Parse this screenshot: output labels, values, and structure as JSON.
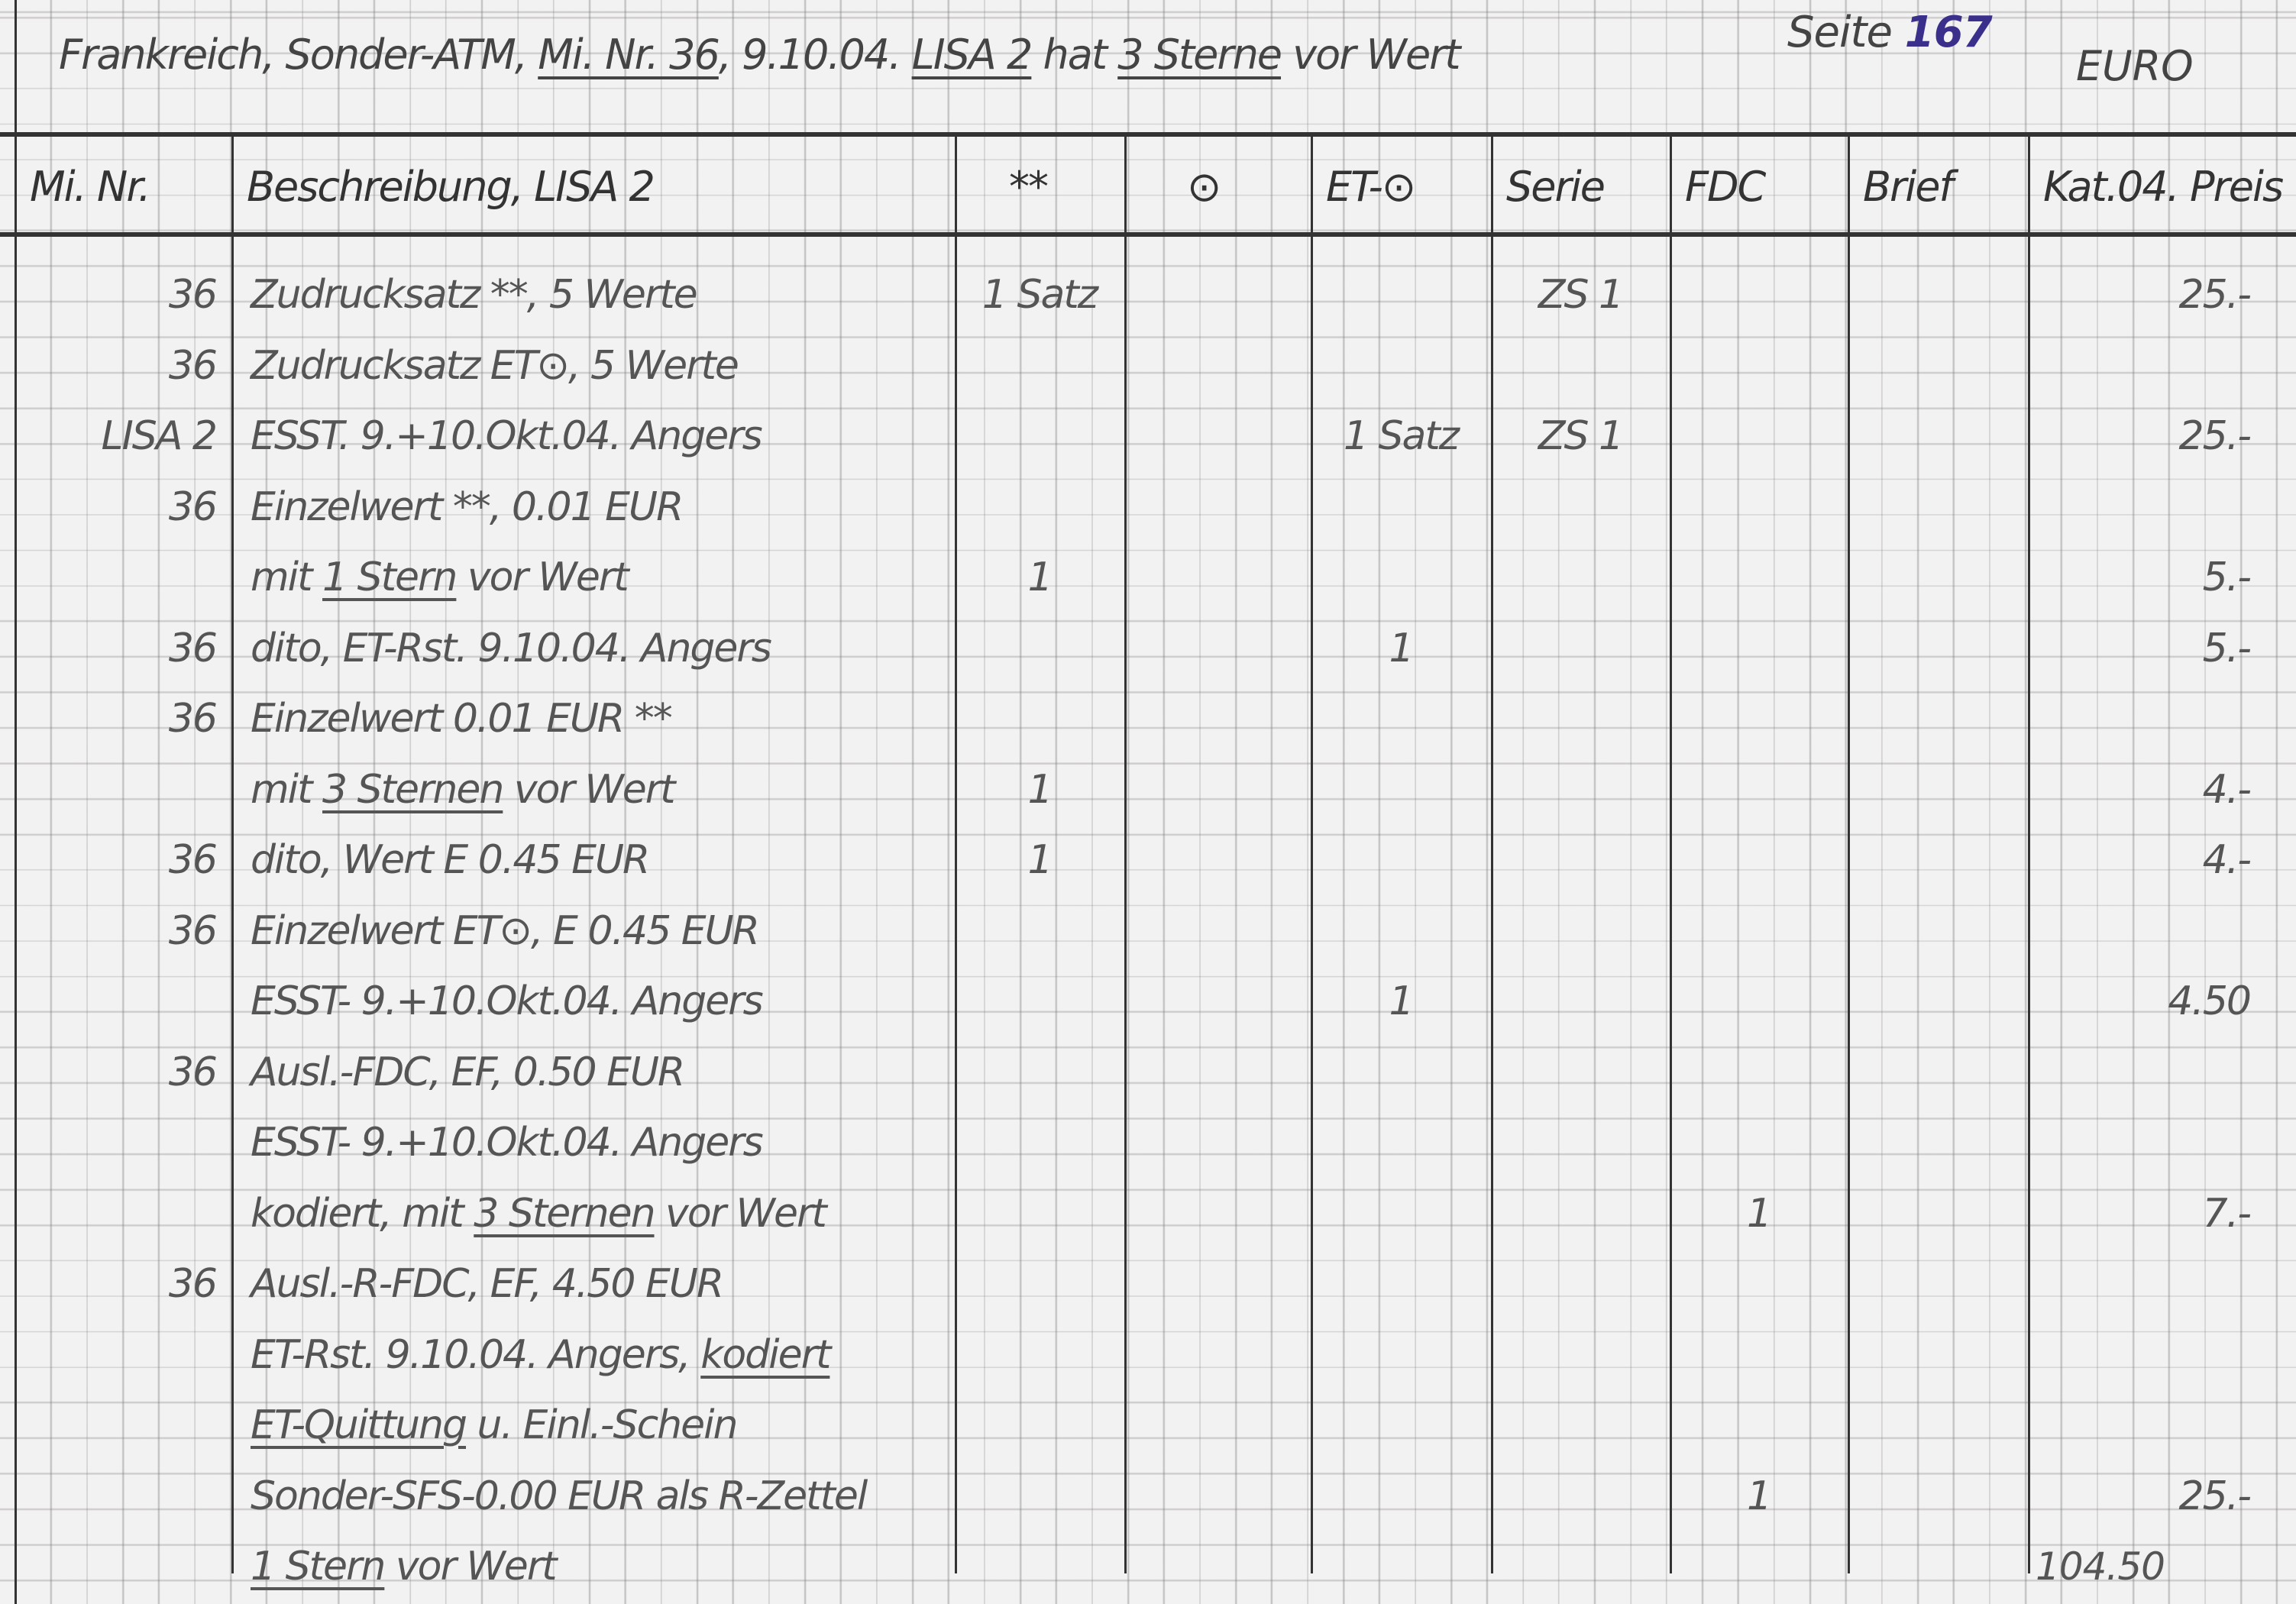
{
  "header": {
    "title_parts": [
      {
        "t": "Frankreich, Sonder-ATM, ",
        "u": false
      },
      {
        "t": "Mi. Nr. 36",
        "u": true
      },
      {
        "t": ", 9.10.04. ",
        "u": false
      },
      {
        "t": "LISA 2",
        "u": true
      },
      {
        "t": " hat ",
        "u": false
      },
      {
        "t": "3 Sterne",
        "u": true
      },
      {
        "t": " vor Wert",
        "u": false
      }
    ],
    "page_label": "Seite",
    "page_number": "167",
    "page_number_color": "#3a2f8a",
    "currency": "EURO"
  },
  "columns": [
    "Mi. Nr.",
    "Beschreibung, LISA 2",
    "**",
    "⊙",
    "ET-⊙",
    "Serie",
    "FDC",
    "Brief",
    "Kat.04. Preis"
  ],
  "rows": [
    {
      "nr": "36",
      "desc": [
        {
          "t": "Zudrucksatz **, 5 Werte"
        }
      ],
      "mint": "1 Satz",
      "used": "",
      "et": "",
      "serie": "ZS 1",
      "fdc": "",
      "brief": "",
      "preis": "25.-"
    },
    {
      "nr": "36",
      "desc": [
        {
          "t": "Zudrucksatz ET⊙, 5 Werte"
        }
      ],
      "mint": "",
      "used": "",
      "et": "",
      "serie": "",
      "fdc": "",
      "brief": "",
      "preis": ""
    },
    {
      "nr": "LISA 2",
      "desc": [
        {
          "t": "ESST. 9.+10.Okt.04. Angers"
        }
      ],
      "mint": "",
      "used": "",
      "et": "1 Satz",
      "serie": "ZS 1",
      "fdc": "",
      "brief": "",
      "preis": "25.-"
    },
    {
      "nr": "36",
      "desc": [
        {
          "t": "Einzelwert **, 0.01 EUR"
        }
      ],
      "mint": "",
      "used": "",
      "et": "",
      "serie": "",
      "fdc": "",
      "brief": "",
      "preis": ""
    },
    {
      "nr": "",
      "desc": [
        {
          "t": "mit "
        },
        {
          "t": "1 Stern",
          "u": true
        },
        {
          "t": " vor Wert"
        }
      ],
      "mint": "1",
      "used": "",
      "et": "",
      "serie": "",
      "fdc": "",
      "brief": "",
      "preis": "5.-"
    },
    {
      "nr": "36",
      "desc": [
        {
          "t": "dito, ET-Rst. 9.10.04. Angers"
        }
      ],
      "mint": "",
      "used": "",
      "et": "1",
      "serie": "",
      "fdc": "",
      "brief": "",
      "preis": "5.-"
    },
    {
      "nr": "36",
      "desc": [
        {
          "t": "Einzelwert 0.01 EUR **"
        }
      ],
      "mint": "",
      "used": "",
      "et": "",
      "serie": "",
      "fdc": "",
      "brief": "",
      "preis": ""
    },
    {
      "nr": "",
      "desc": [
        {
          "t": "mit "
        },
        {
          "t": "3 Sternen",
          "u": true
        },
        {
          "t": " vor Wert"
        }
      ],
      "mint": "1",
      "used": "",
      "et": "",
      "serie": "",
      "fdc": "",
      "brief": "",
      "preis": "4.-"
    },
    {
      "nr": "36",
      "desc": [
        {
          "t": "dito, Wert E 0.45 EUR"
        }
      ],
      "mint": "1",
      "used": "",
      "et": "",
      "serie": "",
      "fdc": "",
      "brief": "",
      "preis": "4.-"
    },
    {
      "nr": "36",
      "desc": [
        {
          "t": "Einzelwert ET⊙, E 0.45 EUR"
        }
      ],
      "mint": "",
      "used": "",
      "et": "",
      "serie": "",
      "fdc": "",
      "brief": "",
      "preis": ""
    },
    {
      "nr": "",
      "desc": [
        {
          "t": "ESST- 9.+10.Okt.04. Angers"
        }
      ],
      "mint": "",
      "used": "",
      "et": "1",
      "serie": "",
      "fdc": "",
      "brief": "",
      "preis": "4.50"
    },
    {
      "nr": "36",
      "desc": [
        {
          "t": "Ausl.-FDC, EF, 0.50 EUR"
        }
      ],
      "mint": "",
      "used": "",
      "et": "",
      "serie": "",
      "fdc": "",
      "brief": "",
      "preis": ""
    },
    {
      "nr": "",
      "desc": [
        {
          "t": "ESST- 9.+10.Okt.04. Angers"
        }
      ],
      "mint": "",
      "used": "",
      "et": "",
      "serie": "",
      "fdc": "",
      "brief": "",
      "preis": ""
    },
    {
      "nr": "",
      "desc": [
        {
          "t": "kodiert, mit "
        },
        {
          "t": "3 Sternen",
          "u": true
        },
        {
          "t": " vor Wert"
        }
      ],
      "mint": "",
      "used": "",
      "et": "",
      "serie": "",
      "fdc": "1",
      "brief": "",
      "preis": "7.-"
    },
    {
      "nr": "36",
      "desc": [
        {
          "t": "Ausl.-R-FDC, EF, 4.50 EUR"
        }
      ],
      "mint": "",
      "used": "",
      "et": "",
      "serie": "",
      "fdc": "",
      "brief": "",
      "preis": ""
    },
    {
      "nr": "",
      "desc": [
        {
          "t": "ET-Rst. 9.10.04. Angers, "
        },
        {
          "t": "kodiert",
          "u": true
        }
      ],
      "mint": "",
      "used": "",
      "et": "",
      "serie": "",
      "fdc": "",
      "brief": "",
      "preis": ""
    },
    {
      "nr": "",
      "desc": [
        {
          "t": "ET-Quittung",
          "u": true
        },
        {
          "t": " u. Einl.-Schein"
        }
      ],
      "mint": "",
      "used": "",
      "et": "",
      "serie": "",
      "fdc": "",
      "brief": "",
      "preis": ""
    },
    {
      "nr": "",
      "desc": [
        {
          "t": "Sonder-SFS-0.00 EUR als R-Zettel"
        }
      ],
      "mint": "",
      "used": "",
      "et": "",
      "serie": "",
      "fdc": "1",
      "brief": "",
      "preis": "25.-"
    },
    {
      "nr": "",
      "desc": [
        {
          "t": "1 Stern",
          "u": true
        },
        {
          "t": " vor Wert"
        }
      ],
      "mint": "",
      "used": "",
      "et": "",
      "serie": "",
      "fdc": "",
      "brief": "",
      "preis": ""
    }
  ],
  "total": "104.50"
}
